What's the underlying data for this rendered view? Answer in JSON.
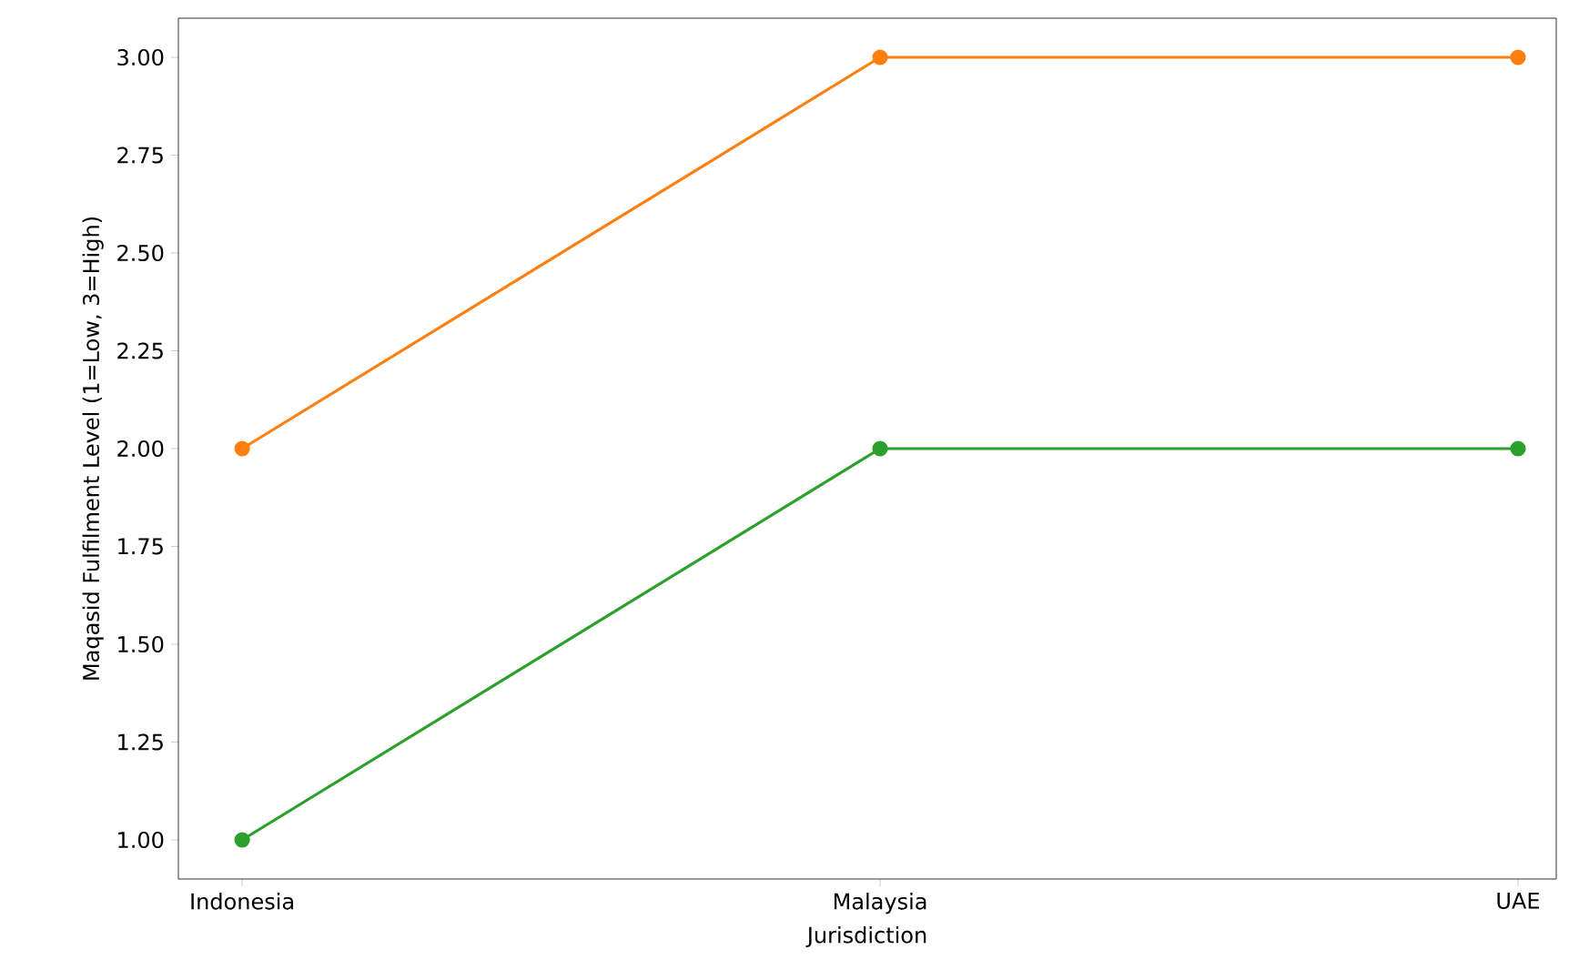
{
  "chart_data": {
    "type": "line",
    "xlabel": "Jurisdiction",
    "ylabel": "Maqasid Fulfilment Level (1=Low, 3=High)",
    "categories": [
      "Indonesia",
      "Malaysia",
      "UAE"
    ],
    "series": [
      {
        "color": "#ff7f0e",
        "values": [
          2,
          3,
          3
        ]
      },
      {
        "color": "#2ca02c",
        "values": [
          1,
          2,
          2
        ]
      }
    ],
    "ylim": [
      0.9,
      3.1
    ],
    "yticks": [
      {
        "value": 1,
        "label": "1.00"
      },
      {
        "value": 1.25,
        "label": "1.25"
      },
      {
        "value": 1.5,
        "label": "1.50"
      },
      {
        "value": 1.75,
        "label": "1.75"
      },
      {
        "value": 2,
        "label": "2.00"
      },
      {
        "value": 2.25,
        "label": "2.25"
      },
      {
        "value": 2.5,
        "label": "2.50"
      },
      {
        "value": 2.75,
        "label": "2.75"
      },
      {
        "value": 3,
        "label": "3.00"
      }
    ],
    "marker": "circle",
    "line_style": "solid"
  }
}
